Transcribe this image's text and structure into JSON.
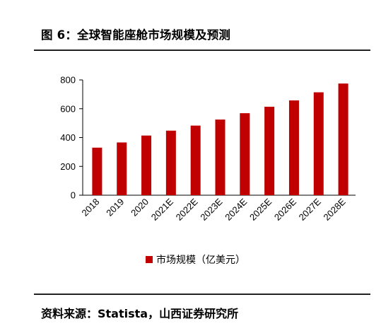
{
  "header": {
    "title": "图 6：全球智能座舱市场规模及预测"
  },
  "footer": {
    "source": "资料来源：Statista，山西证券研究所"
  },
  "chart_data": {
    "type": "bar",
    "categories": [
      "2018",
      "2019",
      "2020",
      "2021E",
      "2022E",
      "2023E",
      "2024E",
      "2025E",
      "2026E",
      "2027E",
      "2028E"
    ],
    "series": [
      {
        "name": "市场规模（亿美元）",
        "values": [
          330,
          366,
          414,
          448,
          483,
          525,
          569,
          614,
          658,
          714,
          775
        ],
        "color": "#C00000"
      }
    ],
    "ylim": [
      0,
      800
    ],
    "yticks": [
      0,
      200,
      400,
      600,
      800
    ],
    "xlabel": "",
    "ylabel": "",
    "grid": false,
    "legend": "bottom-center"
  }
}
